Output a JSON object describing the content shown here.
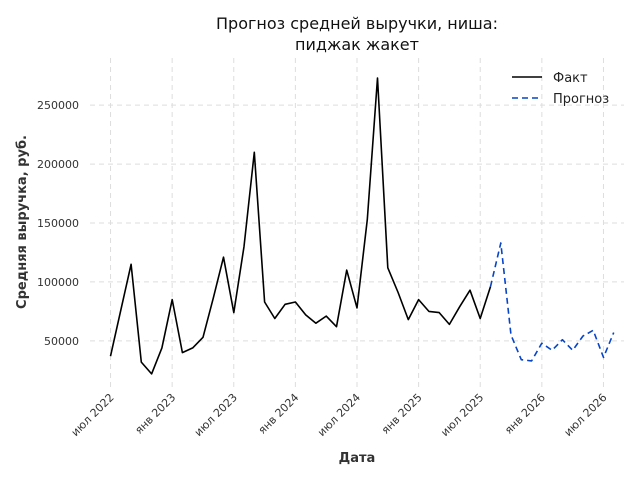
{
  "chart_data": {
    "type": "line",
    "title_lines": [
      "Прогноз средней выручки, ниша:",
      "пиджак жакет"
    ],
    "xlabel": "Дата",
    "ylabel": "Средняя выручка, руб.",
    "x_ticks": [
      "июл 2022",
      "янв 2023",
      "июл 2023",
      "янв 2024",
      "июл 2024",
      "янв 2025",
      "июл 2025",
      "янв 2026",
      "июл 2026"
    ],
    "y_ticks": [
      "50000",
      "100000",
      "150000",
      "200000",
      "250000"
    ],
    "y_tick_values": [
      50000,
      100000,
      150000,
      200000,
      250000
    ],
    "ylim": [
      10000,
      290000
    ],
    "xlim": [
      "2022-05",
      "2026-09"
    ],
    "grid": true,
    "legend_position": "top-right",
    "series": [
      {
        "name": "Факт",
        "color": "#000000",
        "style": "solid",
        "x": [
          "2022-07",
          "2022-08",
          "2022-09",
          "2022-10",
          "2022-11",
          "2022-12",
          "2023-01",
          "2023-02",
          "2023-03",
          "2023-04",
          "2023-05",
          "2023-06",
          "2023-07",
          "2023-08",
          "2023-09",
          "2023-10",
          "2023-11",
          "2023-12",
          "2024-01",
          "2024-02",
          "2024-03",
          "2024-04",
          "2024-05",
          "2024-06",
          "2024-07",
          "2024-08",
          "2024-09",
          "2024-10",
          "2024-11",
          "2024-12",
          "2025-01",
          "2025-02",
          "2025-03",
          "2025-04",
          "2025-05",
          "2025-06",
          "2025-07",
          "2025-08"
        ],
        "values": [
          37000,
          76000,
          115000,
          32000,
          22000,
          44000,
          85000,
          40000,
          44000,
          53000,
          86000,
          121000,
          74000,
          130000,
          210000,
          83000,
          69000,
          81000,
          83000,
          72000,
          65000,
          71000,
          62000,
          110000,
          78000,
          153000,
          273000,
          112000,
          91000,
          68000,
          85000,
          75000,
          74000,
          64000,
          79000,
          93000,
          69000,
          96000
        ]
      },
      {
        "name": "Прогноз",
        "color": "#0645c9",
        "style": "dashed",
        "x": [
          "2025-08",
          "2025-09",
          "2025-10",
          "2025-11",
          "2025-12",
          "2026-01",
          "2026-02",
          "2026-03",
          "2026-04",
          "2026-05",
          "2026-06",
          "2026-07",
          "2026-08"
        ],
        "values": [
          96000,
          133000,
          55000,
          34000,
          33000,
          48000,
          42000,
          51000,
          42000,
          54000,
          59000,
          36000,
          57000
        ]
      }
    ]
  }
}
